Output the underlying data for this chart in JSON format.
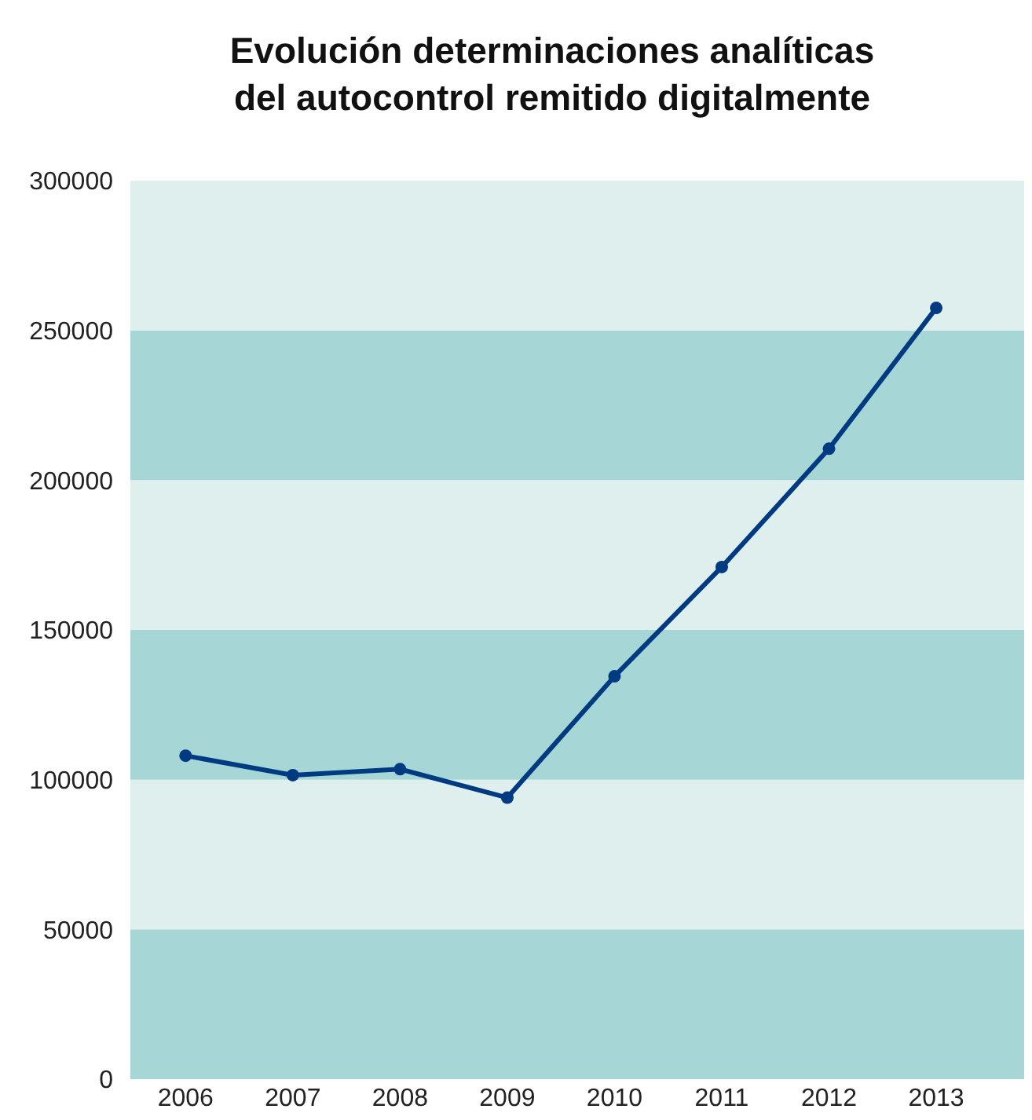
{
  "chart_data": {
    "type": "line",
    "title": "Evolución determinaciones analíticas\ndel autocontrol remitido digitalmente",
    "categories": [
      "2006",
      "2007",
      "2008",
      "2009",
      "2010",
      "2011",
      "2012",
      "2013"
    ],
    "series": [
      {
        "color": "#003a80",
        "values": [
          108000,
          101500,
          103500,
          94000,
          134500,
          171000,
          210500,
          257500
        ]
      }
    ],
    "ylim": [
      0,
      300000
    ],
    "yticks": [
      0,
      50000,
      100000,
      150000,
      200000,
      250000,
      300000
    ],
    "marker": "circle",
    "line_style": "solid",
    "bands": [
      {
        "axis": "y",
        "from": 0,
        "to": 50000,
        "color": "#a6d6d6"
      },
      {
        "axis": "y",
        "from": 50000,
        "to": 100000,
        "color": "#deefee"
      },
      {
        "axis": "y",
        "from": 100000,
        "to": 150000,
        "color": "#a6d6d6"
      },
      {
        "axis": "y",
        "from": 150000,
        "to": 200000,
        "color": "#deefee"
      },
      {
        "axis": "y",
        "from": 200000,
        "to": 250000,
        "color": "#a6d6d6"
      },
      {
        "axis": "y",
        "from": 250000,
        "to": 300000,
        "color": "#deefee"
      }
    ]
  }
}
